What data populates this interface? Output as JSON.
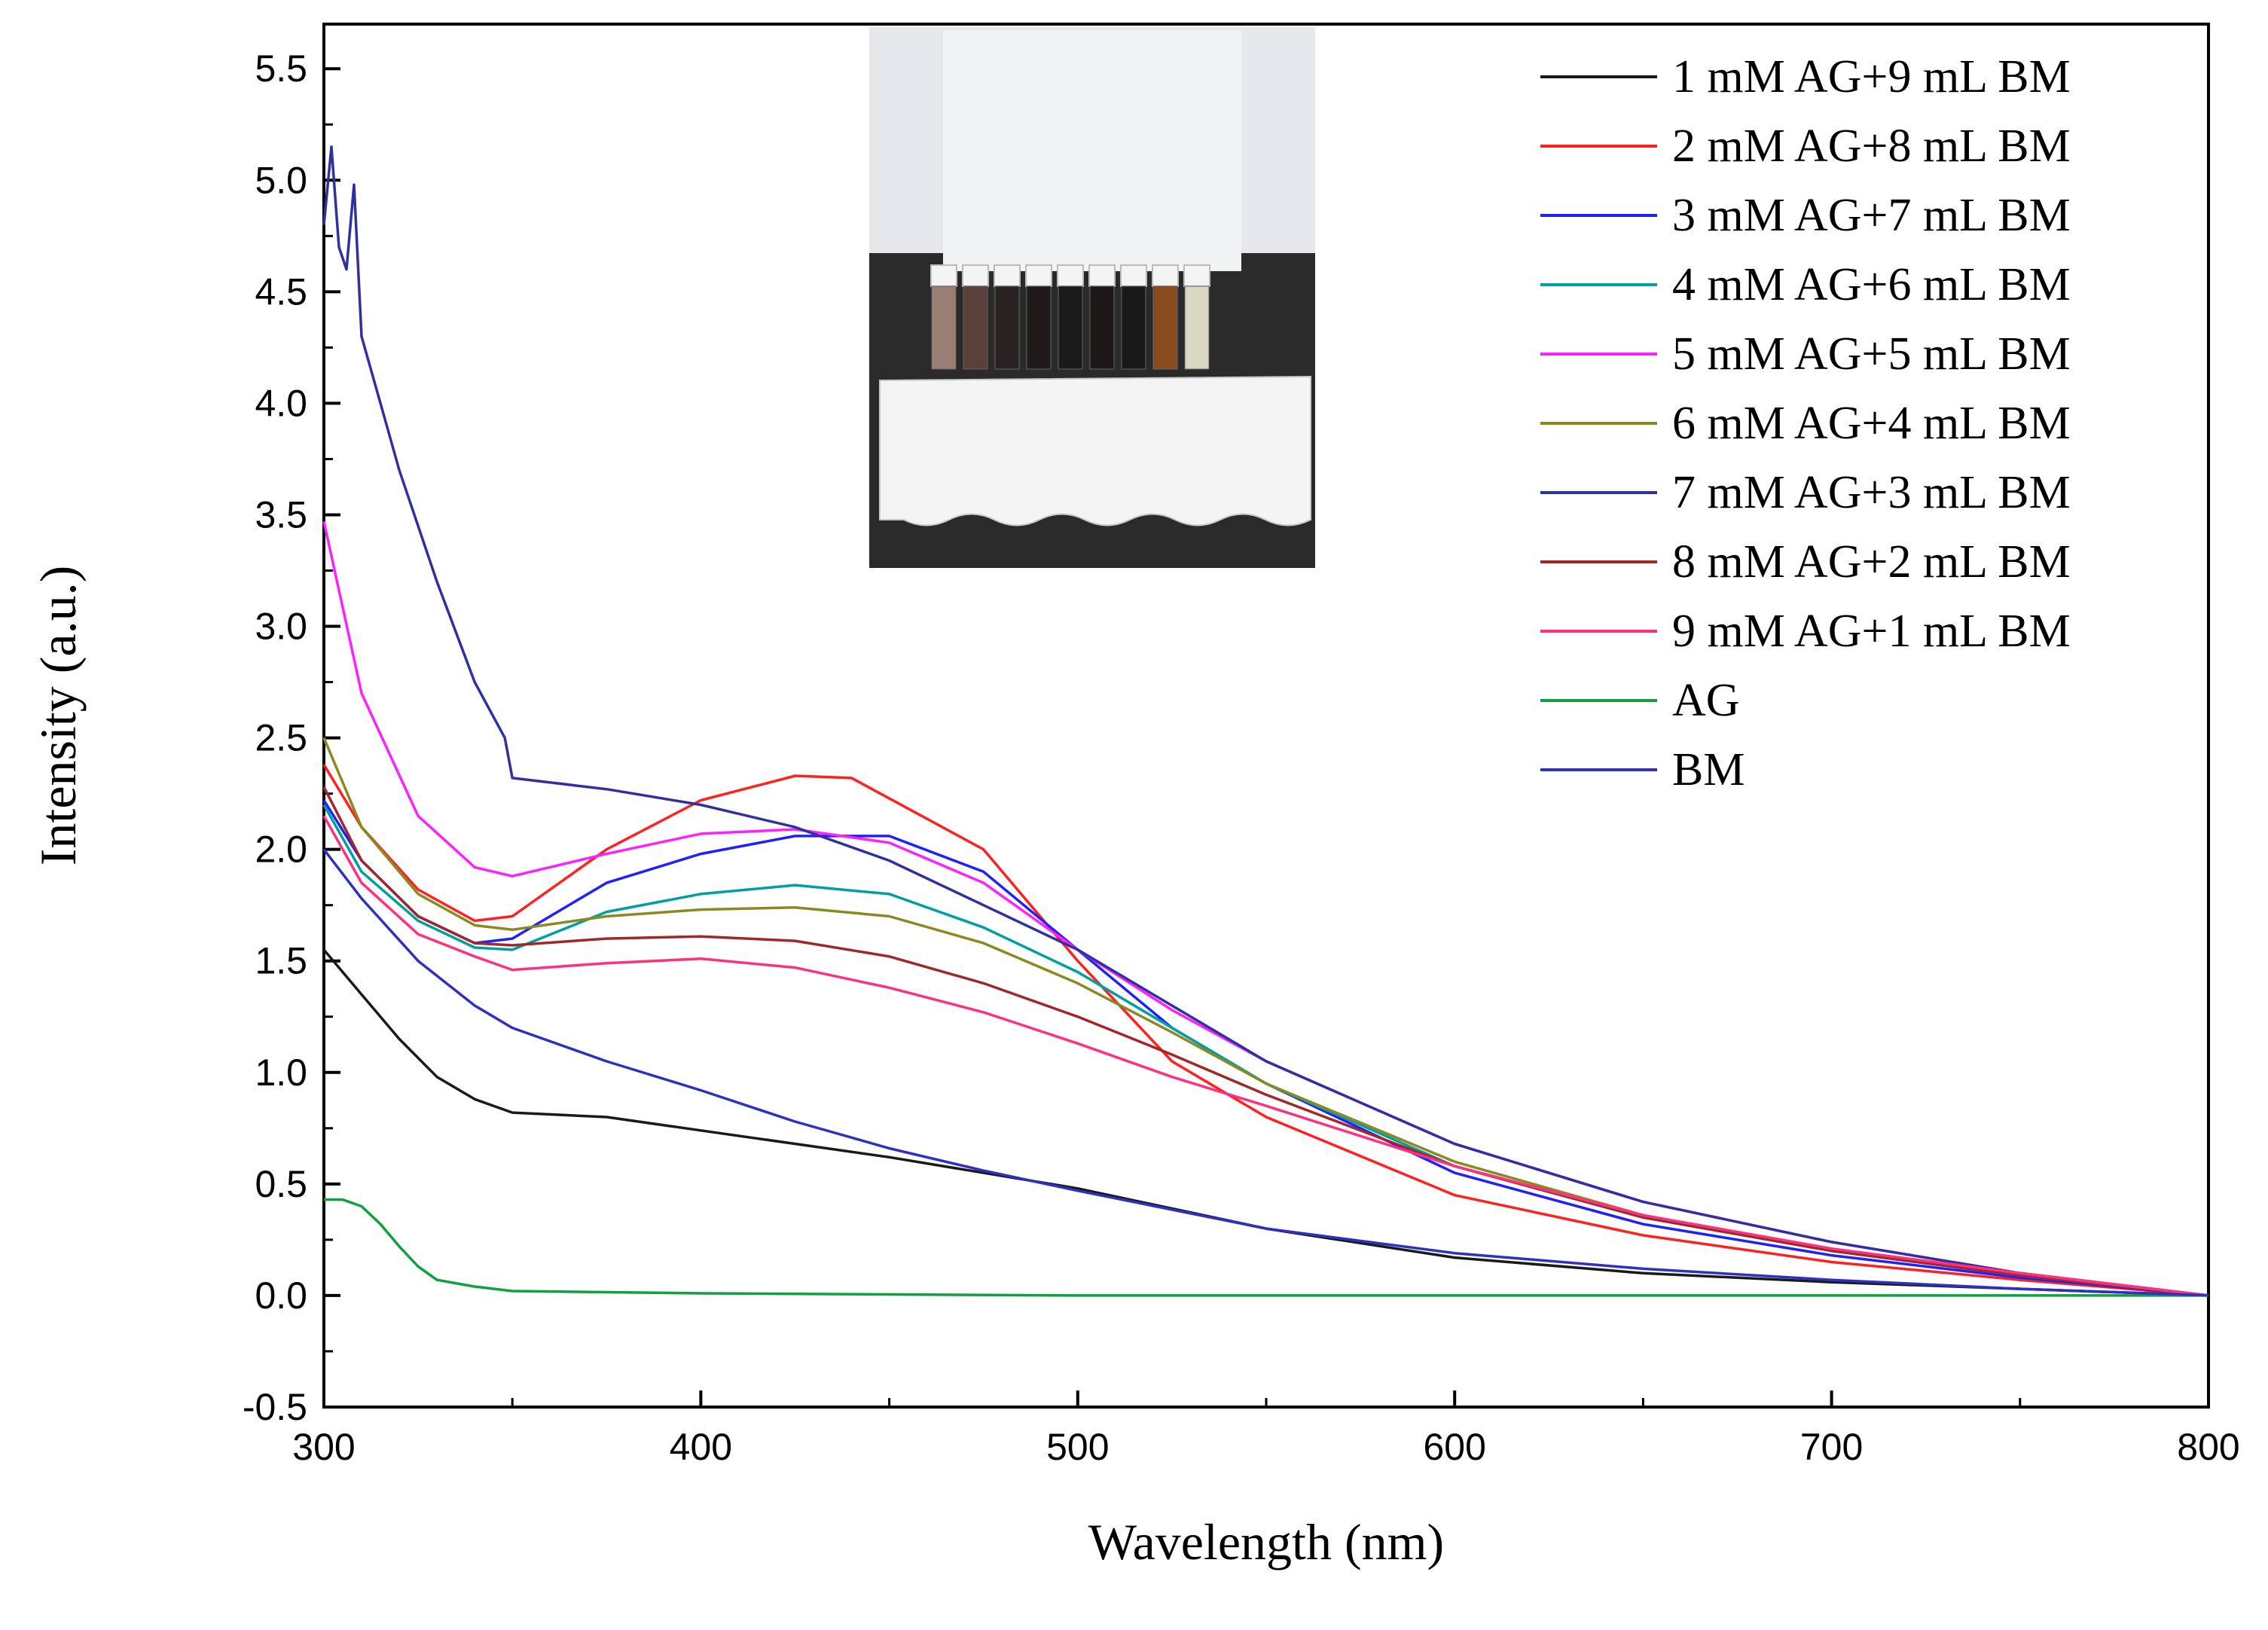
{
  "chart_data": {
    "type": "line",
    "title": "",
    "xlabel": "Wavelength (nm)",
    "ylabel": "Intensity (a.u.)",
    "xlim": [
      300,
      800
    ],
    "ylim": [
      -0.5,
      5.7
    ],
    "xticks": [
      300,
      400,
      500,
      600,
      700,
      800
    ],
    "xtick_labels": [
      "300",
      "400",
      "500",
      "600",
      "700",
      "800"
    ],
    "yticks": [
      -0.5,
      0.0,
      0.5,
      1.0,
      1.5,
      2.0,
      2.5,
      3.0,
      3.5,
      4.0,
      4.5,
      5.0,
      5.5
    ],
    "ytick_labels": [
      "-0.5",
      "0.0",
      "0.5",
      "1.0",
      "1.5",
      "2.0",
      "2.5",
      "3.0",
      "3.5",
      "4.0",
      "4.5",
      "5.0",
      "5.5"
    ],
    "grid": false,
    "legend_position": "top-right",
    "inset": {
      "description": "photo of sample vials in foam rack"
    },
    "series": [
      {
        "name": "1 mM AG+9 mL BM",
        "color": "#1a1a1a",
        "x": [
          300,
          310,
          320,
          330,
          340,
          350,
          375,
          400,
          450,
          500,
          550,
          600,
          650,
          700,
          750,
          800
        ],
        "y": [
          1.55,
          1.35,
          1.15,
          0.98,
          0.88,
          0.82,
          0.8,
          0.74,
          0.62,
          0.48,
          0.3,
          0.17,
          0.1,
          0.06,
          0.03,
          0.0
        ]
      },
      {
        "name": "2 mM AG+8 mL BM",
        "color": "#ff2020",
        "x": [
          300,
          310,
          325,
          340,
          350,
          375,
          400,
          425,
          440,
          475,
          500,
          525,
          550,
          600,
          650,
          700,
          750,
          800
        ],
        "y": [
          2.38,
          2.1,
          1.82,
          1.68,
          1.7,
          2.0,
          2.22,
          2.33,
          2.32,
          2.0,
          1.5,
          1.05,
          0.8,
          0.45,
          0.27,
          0.15,
          0.07,
          0.0
        ]
      },
      {
        "name": "3 mM AG+7 mL BM",
        "color": "#2020ff",
        "x": [
          300,
          310,
          325,
          340,
          350,
          375,
          400,
          425,
          450,
          475,
          500,
          525,
          550,
          600,
          650,
          700,
          750,
          800
        ],
        "y": [
          2.22,
          1.95,
          1.7,
          1.58,
          1.6,
          1.85,
          1.98,
          2.06,
          2.06,
          1.9,
          1.55,
          1.2,
          0.95,
          0.55,
          0.32,
          0.18,
          0.08,
          0.0
        ]
      },
      {
        "name": "4 mM AG+6 mL BM",
        "color": "#00a0a0",
        "x": [
          300,
          310,
          325,
          340,
          350,
          375,
          400,
          425,
          450,
          475,
          500,
          525,
          550,
          600,
          650,
          700,
          750,
          800
        ],
        "y": [
          2.2,
          1.9,
          1.68,
          1.56,
          1.55,
          1.72,
          1.8,
          1.84,
          1.8,
          1.65,
          1.45,
          1.2,
          0.95,
          0.58,
          0.35,
          0.2,
          0.09,
          0.0
        ]
      },
      {
        "name": "5 mM AG+5 mL BM",
        "color": "#ff20ff",
        "x": [
          300,
          310,
          325,
          340,
          350,
          375,
          400,
          425,
          450,
          475,
          500,
          525,
          550,
          600,
          650,
          700,
          750,
          800
        ],
        "y": [
          3.47,
          2.7,
          2.15,
          1.92,
          1.88,
          1.98,
          2.07,
          2.09,
          2.03,
          1.85,
          1.55,
          1.28,
          1.05,
          0.68,
          0.42,
          0.24,
          0.1,
          0.0
        ]
      },
      {
        "name": "6 mM AG+4 mL BM",
        "color": "#8a8a20",
        "x": [
          300,
          310,
          325,
          340,
          350,
          375,
          400,
          425,
          450,
          475,
          500,
          525,
          550,
          600,
          650,
          700,
          750,
          800
        ],
        "y": [
          2.5,
          2.1,
          1.8,
          1.66,
          1.64,
          1.7,
          1.73,
          1.74,
          1.7,
          1.58,
          1.4,
          1.18,
          0.95,
          0.6,
          0.36,
          0.2,
          0.09,
          0.0
        ]
      },
      {
        "name": "7 mM AG+3 mL BM",
        "color": "#3030a0",
        "x": [
          300,
          302,
          304,
          306,
          308,
          310,
          315,
          320,
          330,
          340,
          348,
          350,
          375,
          400,
          425,
          450,
          475,
          500,
          525,
          550,
          600,
          650,
          700,
          750,
          800
        ],
        "y": [
          4.8,
          5.15,
          4.7,
          4.6,
          4.98,
          4.3,
          4.0,
          3.7,
          3.2,
          2.75,
          2.5,
          2.32,
          2.27,
          2.2,
          2.1,
          1.95,
          1.75,
          1.55,
          1.3,
          1.05,
          0.68,
          0.42,
          0.24,
          0.1,
          0.0
        ]
      },
      {
        "name": "8 mM AG+2 mL BM",
        "color": "#a02828",
        "x": [
          300,
          310,
          325,
          340,
          350,
          375,
          400,
          425,
          450,
          475,
          500,
          525,
          550,
          600,
          650,
          700,
          750,
          800
        ],
        "y": [
          2.28,
          1.95,
          1.7,
          1.58,
          1.57,
          1.6,
          1.61,
          1.59,
          1.52,
          1.4,
          1.25,
          1.08,
          0.9,
          0.58,
          0.35,
          0.2,
          0.09,
          0.0
        ]
      },
      {
        "name": "9 mM AG+1 mL BM",
        "color": "#ff3080",
        "x": [
          300,
          310,
          325,
          340,
          350,
          375,
          400,
          425,
          450,
          475,
          500,
          525,
          550,
          600,
          650,
          700,
          750,
          800
        ],
        "y": [
          2.15,
          1.85,
          1.62,
          1.52,
          1.46,
          1.49,
          1.51,
          1.47,
          1.38,
          1.27,
          1.13,
          0.98,
          0.85,
          0.58,
          0.36,
          0.21,
          0.1,
          0.0
        ]
      },
      {
        "name": "AG",
        "color": "#10a040",
        "x": [
          300,
          305,
          310,
          315,
          320,
          325,
          330,
          340,
          350,
          400,
          500,
          600,
          700,
          800
        ],
        "y": [
          0.43,
          0.43,
          0.4,
          0.32,
          0.22,
          0.13,
          0.07,
          0.04,
          0.02,
          0.01,
          0.0,
          0.0,
          0.0,
          0.0
        ]
      },
      {
        "name": "BM",
        "color": "#3030c0",
        "x": [
          300,
          310,
          325,
          340,
          350,
          375,
          400,
          425,
          450,
          475,
          500,
          550,
          600,
          650,
          700,
          750,
          800
        ],
        "y": [
          2.0,
          1.78,
          1.5,
          1.3,
          1.2,
          1.05,
          0.92,
          0.78,
          0.66,
          0.56,
          0.47,
          0.3,
          0.19,
          0.12,
          0.07,
          0.03,
          0.0
        ]
      }
    ]
  }
}
